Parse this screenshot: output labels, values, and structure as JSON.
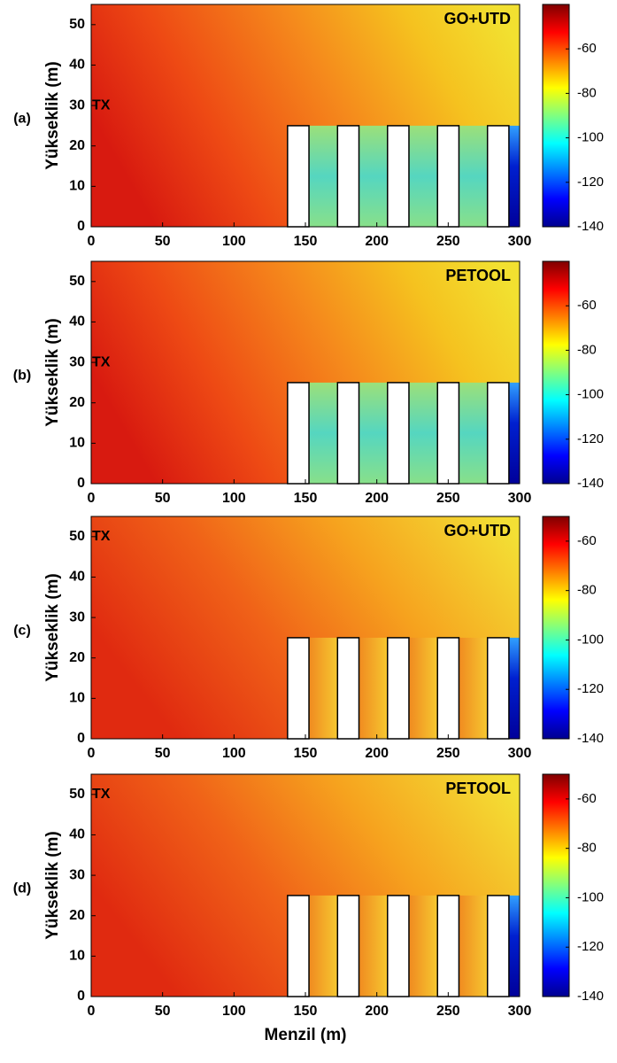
{
  "chart_data": [
    {
      "type": "heatmap",
      "panel_label": "(a)",
      "annotation": "GO+UTD",
      "ylabel": "Yükseklik (m)",
      "tx": {
        "label": "TX",
        "x": 0,
        "y": 30
      },
      "colormap": "jet",
      "xlim": [
        0,
        300
      ],
      "ylim": [
        0,
        55
      ],
      "xticks": [
        0,
        50,
        100,
        150,
        200,
        250,
        300
      ],
      "yticks": [
        0,
        10,
        20,
        30,
        40,
        50
      ],
      "obstacles": [
        {
          "x": [
            137.5,
            152.5
          ],
          "height": 25
        },
        {
          "x": [
            172.5,
            187.5
          ],
          "height": 25
        },
        {
          "x": [
            207.5,
            222.5
          ],
          "height": 25
        },
        {
          "x": [
            242.5,
            257.5
          ],
          "height": 25
        },
        {
          "x": [
            277.5,
            292.5
          ],
          "height": 25
        }
      ],
      "colorbar": {
        "lim": [
          -140,
          -40
        ],
        "ticks": [
          -60,
          -80,
          -100,
          -120,
          -140
        ]
      }
    },
    {
      "type": "heatmap",
      "panel_label": "(b)",
      "annotation": "PETOOL",
      "ylabel": "Yükseklik (m)",
      "tx": {
        "label": "TX",
        "x": 0,
        "y": 30
      },
      "colormap": "jet",
      "xlim": [
        0,
        300
      ],
      "ylim": [
        0,
        55
      ],
      "xticks": [
        0,
        50,
        100,
        150,
        200,
        250,
        300
      ],
      "yticks": [
        0,
        10,
        20,
        30,
        40,
        50
      ],
      "obstacles": [
        {
          "x": [
            137.5,
            152.5
          ],
          "height": 25
        },
        {
          "x": [
            172.5,
            187.5
          ],
          "height": 25
        },
        {
          "x": [
            207.5,
            222.5
          ],
          "height": 25
        },
        {
          "x": [
            242.5,
            257.5
          ],
          "height": 25
        },
        {
          "x": [
            277.5,
            292.5
          ],
          "height": 25
        }
      ],
      "colorbar": {
        "lim": [
          -140,
          -40
        ],
        "ticks": [
          -60,
          -80,
          -100,
          -120,
          -140
        ]
      }
    },
    {
      "type": "heatmap",
      "panel_label": "(c)",
      "annotation": "GO+UTD",
      "ylabel": "Yükseklik (m)",
      "tx": {
        "label": "TX",
        "x": 0,
        "y": 50
      },
      "colormap": "jet",
      "xlim": [
        0,
        300
      ],
      "ylim": [
        0,
        55
      ],
      "xticks": [
        0,
        50,
        100,
        150,
        200,
        250,
        300
      ],
      "yticks": [
        0,
        10,
        20,
        30,
        40,
        50
      ],
      "obstacles": [
        {
          "x": [
            137.5,
            152.5
          ],
          "height": 25
        },
        {
          "x": [
            172.5,
            187.5
          ],
          "height": 25
        },
        {
          "x": [
            207.5,
            222.5
          ],
          "height": 25
        },
        {
          "x": [
            242.5,
            257.5
          ],
          "height": 25
        },
        {
          "x": [
            277.5,
            292.5
          ],
          "height": 25
        }
      ],
      "colorbar": {
        "lim": [
          -140,
          -50
        ],
        "ticks": [
          -60,
          -80,
          -100,
          -120,
          -140
        ]
      }
    },
    {
      "type": "heatmap",
      "panel_label": "(d)",
      "annotation": "PETOOL",
      "ylabel": "Yükseklik (m)",
      "xlabel": "Menzil (m)",
      "tx": {
        "label": "TX",
        "x": 0,
        "y": 50
      },
      "colormap": "jet",
      "xlim": [
        0,
        300
      ],
      "ylim": [
        0,
        55
      ],
      "xticks": [
        0,
        50,
        100,
        150,
        200,
        250,
        300
      ],
      "yticks": [
        0,
        10,
        20,
        30,
        40,
        50
      ],
      "obstacles": [
        {
          "x": [
            137.5,
            152.5
          ],
          "height": 25
        },
        {
          "x": [
            172.5,
            187.5
          ],
          "height": 25
        },
        {
          "x": [
            207.5,
            222.5
          ],
          "height": 25
        },
        {
          "x": [
            242.5,
            257.5
          ],
          "height": 25
        },
        {
          "x": [
            277.5,
            292.5
          ],
          "height": 25
        }
      ],
      "colorbar": {
        "lim": [
          -140,
          -50
        ],
        "ticks": [
          -60,
          -80,
          -100,
          -120,
          -140
        ]
      }
    }
  ]
}
